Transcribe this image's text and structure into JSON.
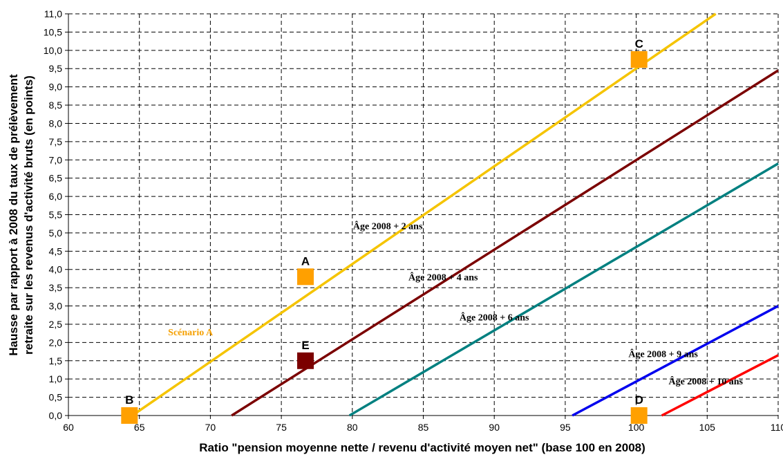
{
  "chart_data": {
    "type": "line",
    "xlabel": "Ratio \"pension moyenne nette / revenu d'activité moyen net\" (base 100 en 2008)",
    "ylabel_lines": [
      "Hausse par rapport à 2008 du taux de prélèvement",
      "retraite sur les revenus d'activité bruts (en points)"
    ],
    "xlim": [
      60,
      110
    ],
    "ylim": [
      0,
      11
    ],
    "x_ticks": [
      {
        "value": 60,
        "label": "60"
      },
      {
        "value": 65,
        "label": "65"
      },
      {
        "value": 70,
        "label": "70"
      },
      {
        "value": 75,
        "label": "75"
      },
      {
        "value": 80,
        "label": "80"
      },
      {
        "value": 85,
        "label": "85"
      },
      {
        "value": 90,
        "label": "90"
      },
      {
        "value": 95,
        "label": "95"
      },
      {
        "value": 100,
        "label": "100"
      },
      {
        "value": 105,
        "label": "105"
      },
      {
        "value": 110,
        "label": "110"
      }
    ],
    "y_ticks": [
      {
        "value": 0.0,
        "label": "0,0"
      },
      {
        "value": 0.5,
        "label": "0,5"
      },
      {
        "value": 1.0,
        "label": "1,0"
      },
      {
        "value": 1.5,
        "label": "1,5"
      },
      {
        "value": 2.0,
        "label": "2,0"
      },
      {
        "value": 2.5,
        "label": "2,5"
      },
      {
        "value": 3.0,
        "label": "3,0"
      },
      {
        "value": 3.5,
        "label": "3,5"
      },
      {
        "value": 4.0,
        "label": "4,0"
      },
      {
        "value": 4.5,
        "label": "4,5"
      },
      {
        "value": 5.0,
        "label": "5,0"
      },
      {
        "value": 5.5,
        "label": "5,5"
      },
      {
        "value": 6.0,
        "label": "6,0"
      },
      {
        "value": 6.5,
        "label": "6,5"
      },
      {
        "value": 7.0,
        "label": "7,0"
      },
      {
        "value": 7.5,
        "label": "7,5"
      },
      {
        "value": 8.0,
        "label": "8,0"
      },
      {
        "value": 8.5,
        "label": "8,5"
      },
      {
        "value": 9.0,
        "label": "9,0"
      },
      {
        "value": 9.5,
        "label": "9,5"
      },
      {
        "value": 10.0,
        "label": "10,0"
      },
      {
        "value": 10.5,
        "label": "10,5"
      },
      {
        "value": 11.0,
        "label": "11,0"
      }
    ],
    "grid": true,
    "series": [
      {
        "color": "#F5C400",
        "x": [
          64.5,
          105.6
        ],
        "y": [
          0.0,
          11.0
        ]
      },
      {
        "color": "#7B0000",
        "x": [
          71.5,
          110.0
        ],
        "y": [
          0.0,
          9.45
        ]
      },
      {
        "color": "#008080",
        "x": [
          79.8,
          110.0
        ],
        "y": [
          0.0,
          6.9
        ]
      },
      {
        "color": "#0000EE",
        "x": [
          95.5,
          110.0
        ],
        "y": [
          0.0,
          3.0
        ]
      },
      {
        "color": "#FF0000",
        "x": [
          101.8,
          110.0
        ],
        "y": [
          0.0,
          1.65
        ]
      }
    ],
    "annotations": [
      {
        "text": "Scénario A",
        "x": 68.6,
        "y": 2.2,
        "color": "#F5A000"
      },
      {
        "text": "Âge 2008  +  2 ans",
        "x": 82.5,
        "y": 5.1,
        "color": "#000000"
      },
      {
        "text": "Âge 2008  +  4 ans",
        "x": 86.4,
        "y": 3.7,
        "color": "#000000"
      },
      {
        "text": "Âge 2008  +  6 ans",
        "x": 90.0,
        "y": 2.6,
        "color": "#000000"
      },
      {
        "text": "Âge 2008  +  9 ans",
        "x": 101.9,
        "y": 1.6,
        "color": "#000000"
      },
      {
        "text": "Âge 2008  +  10 ans",
        "x": 104.9,
        "y": 0.85,
        "color": "#000000"
      }
    ],
    "points": [
      {
        "label": "A",
        "x": 76.7,
        "y": 3.8,
        "color": "#FFA000"
      },
      {
        "label": "B",
        "x": 64.3,
        "y": 0.0,
        "color": "#FFA000"
      },
      {
        "label": "C",
        "x": 100.2,
        "y": 9.75,
        "color": "#FFA000"
      },
      {
        "label": "D",
        "x": 100.2,
        "y": 0.0,
        "color": "#FFA000"
      },
      {
        "label": "E",
        "x": 76.7,
        "y": 1.5,
        "color": "#7B0000"
      }
    ]
  }
}
